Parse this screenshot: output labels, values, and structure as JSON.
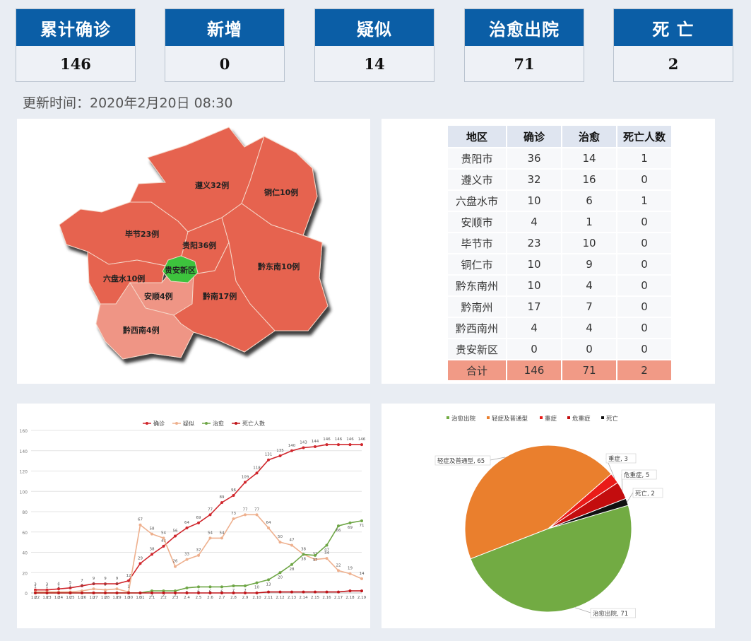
{
  "stats": [
    {
      "label": "累计确诊",
      "value": "146"
    },
    {
      "label": "新增",
      "value": "0"
    },
    {
      "label": "疑似",
      "value": "14"
    },
    {
      "label": "治愈出院",
      "value": "71"
    },
    {
      "label": "死 亡",
      "value": "2"
    }
  ],
  "update_time": "更新时间：2020年2月20日  08:30",
  "map_labels": [
    "遵义32例",
    "铜仁10例",
    "毕节23例",
    "贵阳36例",
    "黔东南10例",
    "贵安新区",
    "六盘水10例",
    "安顺4例",
    "黔南17例",
    "黔西南4例"
  ],
  "table": {
    "headers": [
      "地区",
      "确诊",
      "治愈",
      "死亡人数"
    ],
    "rows": [
      [
        "贵阳市",
        "36",
        "14",
        "1"
      ],
      [
        "遵义市",
        "32",
        "16",
        "0"
      ],
      [
        "六盘水市",
        "10",
        "6",
        "1"
      ],
      [
        "安顺市",
        "4",
        "1",
        "0"
      ],
      [
        "毕节市",
        "23",
        "10",
        "0"
      ],
      [
        "铜仁市",
        "10",
        "9",
        "0"
      ],
      [
        "黔东南州",
        "10",
        "4",
        "0"
      ],
      [
        "黔南州",
        "17",
        "7",
        "0"
      ],
      [
        "黔西南州",
        "4",
        "4",
        "0"
      ],
      [
        "贵安新区",
        "0",
        "0",
        "0"
      ]
    ],
    "total": [
      "合计",
      "146",
      "71",
      "2"
    ]
  },
  "colors": {
    "header_blue": "#0b5ea6",
    "map_red": "#e6644f",
    "map_pink": "#ef9585",
    "map_green": "#3cc33c",
    "confirmed": "#d0262c",
    "suspect": "#eeb08e",
    "cured": "#6ea646",
    "death": "#c0161b",
    "pie_orange": "#ea7f2d",
    "pie_green": "#72ab43",
    "pie_red": "#ea1b18",
    "pie_crit": "#c30d0e",
    "pie_black": "#111111"
  },
  "chart_data": [
    {
      "type": "line",
      "x": [
        "1.22",
        "1.23",
        "1.24",
        "1.25",
        "1.26",
        "1.27",
        "1.28",
        "1.29",
        "1.30",
        "1.31",
        "2.1",
        "2.2",
        "2.3",
        "2.4",
        "2.5",
        "2.6",
        "2.7",
        "2.8",
        "2.9",
        "2.10",
        "2.11",
        "2.12",
        "2.13",
        "2.14",
        "2.15",
        "2.16",
        "2.17",
        "2.18",
        "2.19"
      ],
      "ylim": [
        0,
        160
      ],
      "yticks": [
        0,
        20,
        40,
        60,
        80,
        100,
        120,
        140,
        160
      ],
      "legend_position": "top",
      "series": [
        {
          "name": "确诊",
          "color": "#d0262c",
          "values": [
            3,
            3,
            4,
            5,
            7,
            9,
            9,
            9,
            12,
            29,
            38,
            46,
            56,
            64,
            69,
            77,
            89,
            96,
            109,
            118,
            131,
            135,
            140,
            143,
            144,
            146,
            146,
            146,
            146
          ]
        },
        {
          "name": "疑似",
          "color": "#eeb08e",
          "values": [
            1,
            1,
            1,
            1,
            2,
            4,
            3,
            4,
            1,
            67,
            58,
            54,
            26,
            33,
            37,
            54,
            54,
            73,
            77,
            77,
            64,
            50,
            47,
            38,
            33,
            34,
            22,
            19,
            14
          ]
        },
        {
          "name": "治愈",
          "color": "#6ea646",
          "values": [
            0,
            0,
            0,
            0,
            0,
            0,
            0,
            0,
            0,
            0,
            2,
            2,
            2,
            5,
            6,
            6,
            6,
            7,
            7,
            10,
            13,
            20,
            28,
            38,
            37,
            47,
            66,
            69,
            71
          ]
        },
        {
          "name": "死亡人数",
          "color": "#c0161b",
          "values": [
            0,
            0,
            0,
            0,
            0,
            0,
            0,
            0,
            0,
            0,
            0,
            0,
            0,
            0,
            0,
            0,
            0,
            0,
            0,
            0,
            1,
            1,
            1,
            1,
            1,
            1,
            1,
            2,
            2
          ]
        }
      ]
    },
    {
      "type": "pie",
      "legend_position": "top",
      "slices": [
        {
          "name": "治愈出院",
          "value": 71,
          "label": "治愈出院, 71",
          "color": "#72ab43"
        },
        {
          "name": "轻症及普通型",
          "value": 65,
          "label": "轻症及普通型, 65",
          "color": "#ea7f2d"
        },
        {
          "name": "重症",
          "value": 3,
          "label": "重症, 3",
          "color": "#ea1b18"
        },
        {
          "name": "危重症",
          "value": 5,
          "label": "危重症, 5",
          "color": "#c30d0e"
        },
        {
          "name": "死亡",
          "value": 2,
          "label": "死亡, 2",
          "color": "#111111"
        }
      ]
    }
  ]
}
